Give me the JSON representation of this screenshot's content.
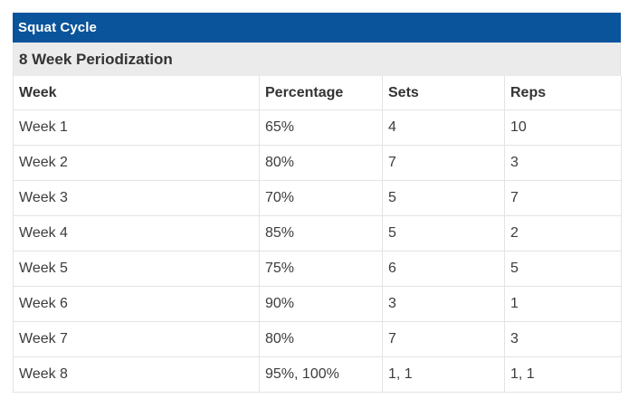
{
  "chart_data": {
    "type": "table",
    "title": "Squat Cycle",
    "subtitle": "8 Week Periodization",
    "columns": [
      "Week",
      "Percentage",
      "Sets",
      "Reps"
    ],
    "rows": [
      [
        "Week 1",
        "65%",
        "4",
        "10"
      ],
      [
        "Week 2",
        "80%",
        "7",
        "3"
      ],
      [
        "Week 3",
        "70%",
        "5",
        "7"
      ],
      [
        "Week 4",
        "85%",
        "5",
        "2"
      ],
      [
        "Week 5",
        "75%",
        "6",
        "5"
      ],
      [
        "Week 6",
        "90%",
        "3",
        "1"
      ],
      [
        "Week 7",
        "80%",
        "7",
        "3"
      ],
      [
        "Week 8",
        "95%, 100%",
        "1, 1",
        "1, 1"
      ]
    ]
  },
  "colors": {
    "title_bar_bg": "#0A549B",
    "title_text": "#FFFFFF",
    "subtitle_bar_bg": "#EBEBEB",
    "heading_text": "#333333",
    "body_text": "#3C3C3C",
    "border": "#E3E3E3"
  }
}
